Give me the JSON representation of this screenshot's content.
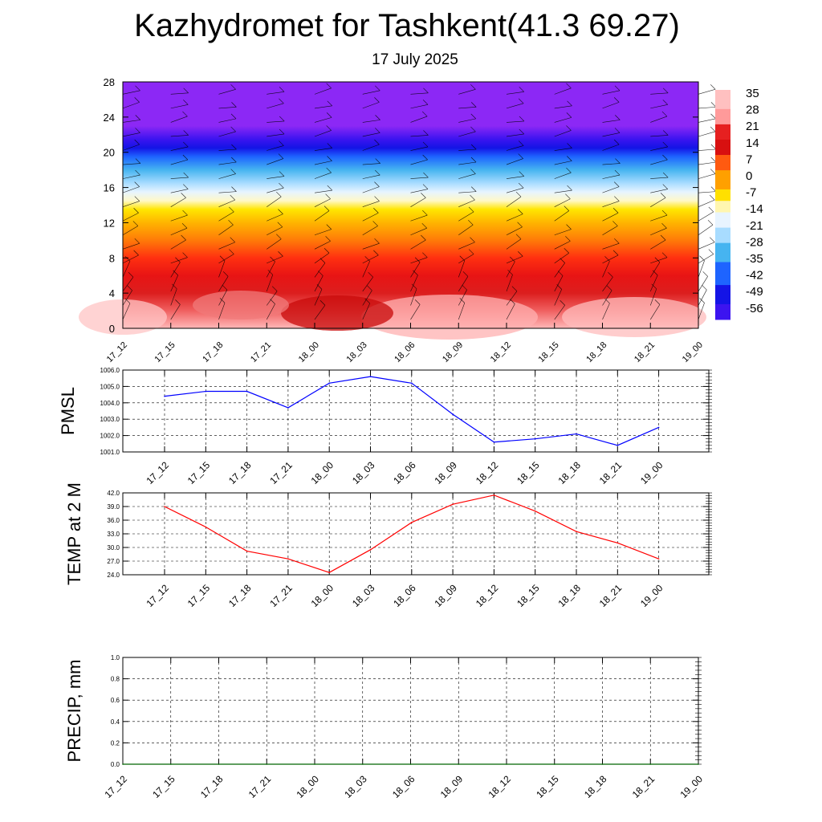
{
  "header": {
    "title": "Kazhydromet for Tashkent(41.3 69.27)",
    "subtitle": "17 July 2025"
  },
  "chart_data": [
    {
      "type": "heatmap",
      "title": "",
      "xlabel": "",
      "ylabel": "",
      "x_ticks": [
        "17_12",
        "17_15",
        "17_18",
        "17_21",
        "18_00",
        "18_03",
        "18_06",
        "18_09",
        "18_12",
        "18_15",
        "18_18",
        "18_21",
        "19_00"
      ],
      "y_ticks": [
        0,
        4,
        8,
        12,
        16,
        20,
        24,
        28
      ],
      "ylim": [
        0,
        28
      ],
      "colorbar_labels": [
        "35",
        "28",
        "21",
        "14",
        "7",
        "0",
        "-7",
        "-14",
        "-21",
        "-28",
        "-35",
        "-42",
        "-49",
        "-56"
      ],
      "colorbar_stops": [
        {
          "value": 38,
          "color": "#ffc0c0"
        },
        {
          "value": 30,
          "color": "#ff9a9a"
        },
        {
          "value": 24,
          "color": "#e62020"
        },
        {
          "value": 17,
          "color": "#d81010"
        },
        {
          "value": 10,
          "color": "#ff5a10"
        },
        {
          "value": 3,
          "color": "#ffa000"
        },
        {
          "value": -4,
          "color": "#ffe000"
        },
        {
          "value": -10,
          "color": "#fff6b0"
        },
        {
          "value": -15,
          "color": "#e8f4ff"
        },
        {
          "value": -20,
          "color": "#a8dcff"
        },
        {
          "value": -28,
          "color": "#46b4f0"
        },
        {
          "value": -36,
          "color": "#1e64ff"
        },
        {
          "value": -46,
          "color": "#1414e6"
        },
        {
          "value": -54,
          "color": "#3c14f0"
        },
        {
          "value": -60,
          "color": "#8c28f5"
        }
      ],
      "grid": false,
      "legend": "right"
    },
    {
      "type": "line",
      "ylabel": "PMSL",
      "x": [
        "17_12",
        "17_15",
        "17_18",
        "17_21",
        "18_00",
        "18_03",
        "18_06",
        "18_09",
        "18_12",
        "18_15",
        "18_18",
        "18_21",
        "19_00"
      ],
      "series": [
        {
          "values": [
            1004.4,
            1004.7,
            1004.7,
            1003.7,
            1005.2,
            1005.6,
            1005.2,
            1003.3,
            1001.6,
            1001.8,
            1002.1,
            1001.4,
            1002.5
          ],
          "color": "#0000ff"
        }
      ],
      "ylim": [
        1001.0,
        1006.0
      ],
      "y_ticks": [
        "1001.0",
        "1002.0",
        "1003.0",
        "1004.0",
        "1005.0",
        "1006.0"
      ],
      "grid": true
    },
    {
      "type": "line",
      "ylabel": "TEMP at 2 M",
      "x": [
        "17_12",
        "17_15",
        "17_18",
        "17_21",
        "18_00",
        "18_03",
        "18_06",
        "18_09",
        "18_12",
        "18_15",
        "18_18",
        "18_21",
        "19_00"
      ],
      "series": [
        {
          "values": [
            39.0,
            34.5,
            29.2,
            27.5,
            24.5,
            29.5,
            35.5,
            39.5,
            41.5,
            38.0,
            33.5,
            31.0,
            27.5
          ],
          "color": "#ff0000"
        }
      ],
      "ylim": [
        24.0,
        42.0
      ],
      "y_ticks": [
        "24.0",
        "27.0",
        "30.0",
        "33.0",
        "36.0",
        "39.0",
        "42.0"
      ],
      "grid": true
    },
    {
      "type": "line",
      "ylabel": "PRECIP, mm",
      "x": [
        "17_12",
        "17_15",
        "17_18",
        "17_21",
        "18_00",
        "18_03",
        "18_06",
        "18_09",
        "18_12",
        "18_15",
        "18_18",
        "18_21",
        "19_00"
      ],
      "series": [
        {
          "values": [
            0,
            0,
            0,
            0,
            0,
            0,
            0,
            0,
            0,
            0,
            0,
            0,
            0
          ],
          "color": "#006400"
        }
      ],
      "ylim": [
        0.0,
        1.0
      ],
      "y_ticks": [
        "0.0",
        "0.2",
        "0.4",
        "0.6",
        "0.8",
        "1.0"
      ],
      "grid": true
    }
  ]
}
